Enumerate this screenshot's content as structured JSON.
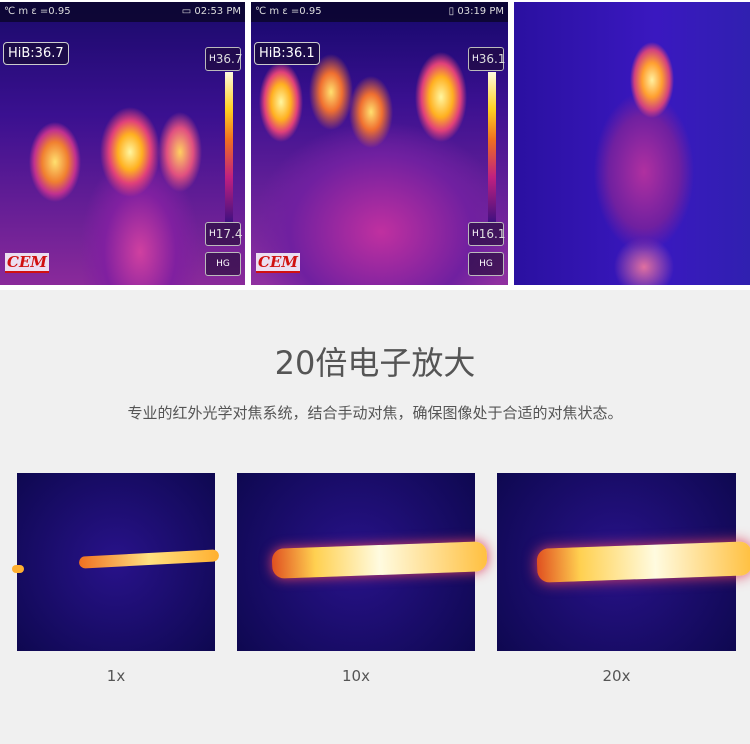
{
  "panels": [
    {
      "status_left": "℃ m ε =0.95",
      "status_right": "02:53 PM",
      "battery_icon": "battery-charging-icon",
      "hib": "HiB:36.7",
      "high_label": "H",
      "high_value": "36.7",
      "low_label": "H",
      "low_value": "17.4",
      "mode": "HG",
      "logo": "CEM"
    },
    {
      "status_left": "℃ m ε =0.95",
      "status_right": "03:19 PM",
      "battery_icon": "battery-icon",
      "hib": "HiB:36.1",
      "high_label": "H",
      "high_value": "36.1",
      "low_label": "H",
      "low_value": "16.1",
      "mode": "HG",
      "logo": "CEM"
    }
  ],
  "title": "20倍电子放大",
  "subtitle": "专业的红外光学对焦系统，结合手动对焦，确保图像处于合适的对焦状态。",
  "zoom_levels": [
    "1x",
    "10x",
    "20x"
  ]
}
